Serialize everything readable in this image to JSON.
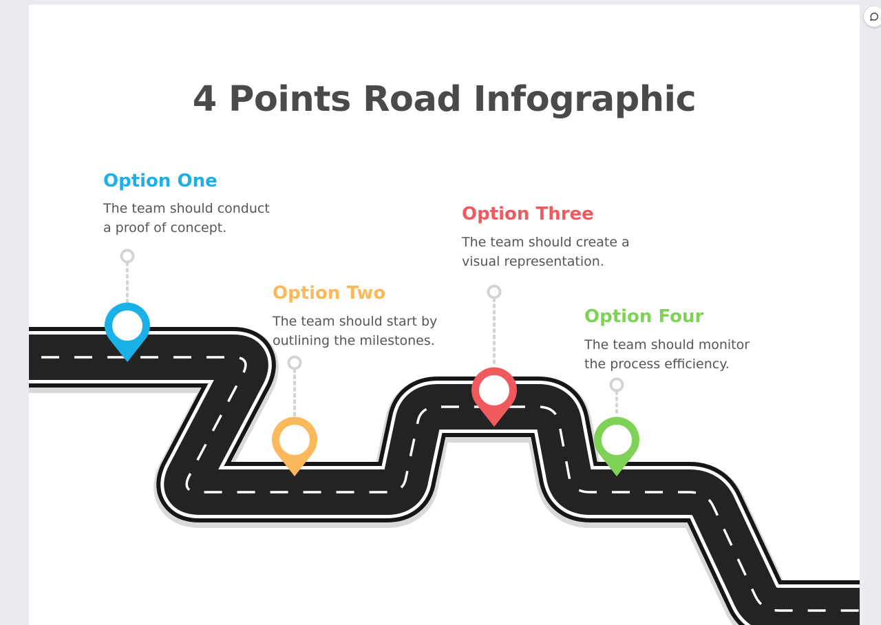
{
  "title": "4 Points Road Infographic",
  "options": [
    {
      "title": "Option One",
      "desc_line1": "The team should conduct",
      "desc_line2": "a proof of concept.",
      "color": "#1ab0e8"
    },
    {
      "title": "Option Two",
      "desc_line1": "The team should start by",
      "desc_line2": "outlining the milestones.",
      "color": "#fbb95c"
    },
    {
      "title": "Option Three",
      "desc_line1": "The team should create a",
      "desc_line2": "visual representation.",
      "color": "#f05a5f"
    },
    {
      "title": "Option Four",
      "desc_line1": "The team should monitor",
      "desc_line2": "the process efficiency.",
      "color": "#7ed357"
    }
  ],
  "colors": {
    "road": "#222222",
    "road_edge": "#ffffff",
    "road_shadow": "#d9d9d9",
    "connector": "#d4d4d4",
    "title": "#4a4a4a",
    "body_text": "#555555"
  },
  "side_button": {
    "icon": "comment-refresh-icon"
  }
}
